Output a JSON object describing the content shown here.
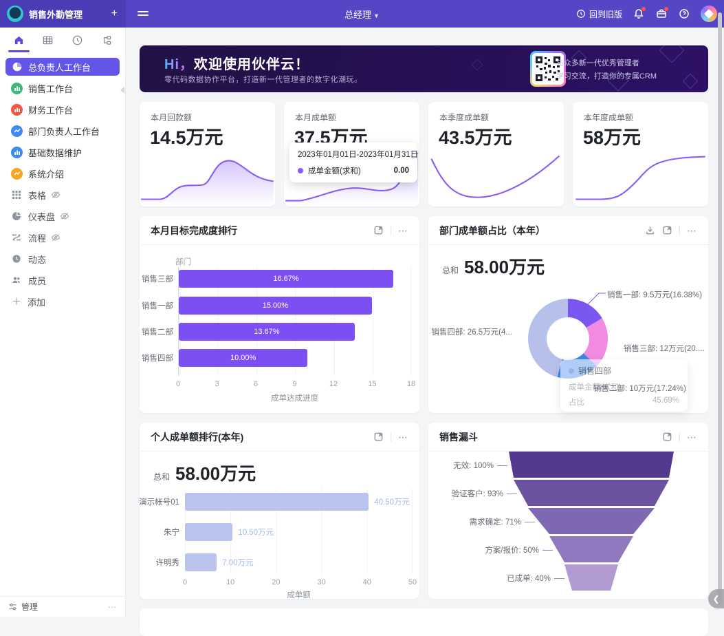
{
  "topbar": {
    "app_title": "销售外勤管理",
    "role": "总经理",
    "back_to_old_label": "回到旧版"
  },
  "sidebar": {
    "workspaces": [
      {
        "label": "总负责人工作台",
        "active": true
      },
      {
        "label": "销售工作台"
      },
      {
        "label": "财务工作台"
      },
      {
        "label": "部门负责人工作台"
      },
      {
        "label": "基础数据维护"
      },
      {
        "label": "系统介绍"
      }
    ],
    "tools": [
      {
        "label": "表格",
        "hidden_eye": true
      },
      {
        "label": "仪表盘",
        "hidden_eye": true
      },
      {
        "label": "流程",
        "hidden_eye": true
      },
      {
        "label": "动态",
        "hidden_eye": false
      },
      {
        "label": "成员",
        "hidden_eye": false
      }
    ],
    "add_label": "添加",
    "manage_label": "管理"
  },
  "banner": {
    "title_hi": "Hi，",
    "title_rest": "欢迎使用伙伴云！",
    "subtitle": "零代码数据协作平台，打造新一代管理者的数字化潮玩。",
    "qr_line1": "与众多新一代优秀管理者",
    "qr_line2": "学习交流，打造你的专属CRM"
  },
  "stats": [
    {
      "label": "本月回款额",
      "value": "14.5万元"
    },
    {
      "label": "本月成单额",
      "value": "37.5万元",
      "tooltip": {
        "date_range": "2023年01月01日-2023年01月31日",
        "series": "成单金额(求和)",
        "value": "0.00"
      }
    },
    {
      "label": "本季度成单额",
      "value": "43.5万元"
    },
    {
      "label": "本年度成单额",
      "value": "58万元"
    }
  ],
  "cards": {
    "target_rank": {
      "title": "本月目标完成度排行"
    },
    "dept_share": {
      "title": "部门成单额占比（本年）",
      "total_label": "总和",
      "total_value": "58.00万元"
    },
    "personal_rank": {
      "title": "个人成单额排行(本年)",
      "total_label": "总和",
      "total_value": "58.00万元"
    },
    "funnel": {
      "title": "销售漏斗"
    }
  },
  "chart_data": [
    {
      "type": "bar",
      "orientation": "horizontal",
      "title": "本月目标完成度排行",
      "categories": [
        "销售三部",
        "销售一部",
        "销售二部",
        "销售四部"
      ],
      "values": [
        16.67,
        15.0,
        13.67,
        10.0
      ],
      "bar_labels": [
        "16.67%",
        "15.00%",
        "13.67%",
        "10.00%"
      ],
      "xlabel": "成单达成进度",
      "ylabel": "部门",
      "xlim": [
        0,
        18
      ],
      "xticks": [
        0,
        3,
        6,
        9,
        12,
        15,
        18
      ],
      "bar_color": "#7c4ff2",
      "grid": true
    },
    {
      "type": "pie",
      "title": "部门成单额占比（本年）",
      "total": "58.00万元",
      "slices": [
        {
          "name": "销售一部",
          "pct": 16.38,
          "color": "#7a57ee",
          "label": "销售一部: 9.5万元(16.38%)"
        },
        {
          "name": "销售三部",
          "pct": 20.69,
          "color": "#f18ae1",
          "label": "销售三部: 12万元(20...."
        },
        {
          "name": "销售二部",
          "pct": 17.24,
          "color": "#3e87e8",
          "label": "销售二部: 10万元(17.24%)"
        },
        {
          "name": "销售四部",
          "pct": 45.69,
          "color": "#b7c0ea",
          "label": "销售四部: 26.5万元(4..."
        }
      ],
      "tooltip": {
        "title": "销售四部",
        "row1_label": "成单金额(求和)",
        "row2_label": "占比",
        "row2_value": "45.69%"
      }
    },
    {
      "type": "bar",
      "orientation": "horizontal",
      "title": "个人成单额排行(本年)",
      "categories": [
        "演示帐号01",
        "朱宁",
        "许明秀"
      ],
      "values": [
        40.5,
        10.5,
        7.0
      ],
      "value_labels": [
        "40.50万元",
        "10.50万元",
        "7.00万元"
      ],
      "xlabel": "成单额",
      "xlim": [
        0,
        50
      ],
      "xticks": [
        0,
        10,
        20,
        30,
        40,
        50
      ],
      "bar_color": "#b9c3ee",
      "grid": true
    },
    {
      "type": "funnel",
      "title": "销售漏斗",
      "stages": [
        {
          "label": "无效: 100%",
          "pct": 100,
          "color": "#54398f"
        },
        {
          "label": "验证客户: 93%",
          "pct": 93,
          "color": "#6b53a1"
        },
        {
          "label": "需求确定: 71%",
          "pct": 71,
          "color": "#7f68b1"
        },
        {
          "label": "方案/报价: 50%",
          "pct": 50,
          "color": "#9178be"
        },
        {
          "label": "已成单: 40%",
          "pct": 40,
          "color": "#b29ad2"
        }
      ],
      "boundaries": [
        240,
        226,
        184,
        122,
        78,
        56
      ]
    }
  ]
}
